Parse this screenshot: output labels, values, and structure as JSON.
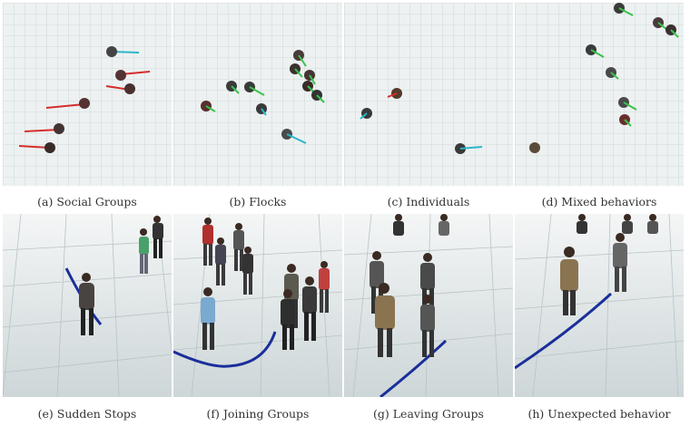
{
  "captions": {
    "a": "(a) Social Groups",
    "b": "(b) Flocks",
    "c": "(c) Individuals",
    "d": "(d) Mixed behaviors",
    "e": "(e) Sudden Stops",
    "f": "(f) Joining Groups",
    "g": "(g) Leaving Groups",
    "h": "(h) Unexpected behavior"
  },
  "colors": {
    "floor_top": "#eef2f2",
    "grid": "#c9d3d4",
    "social_arrow": "#d62d2d",
    "flock_arrow": "#39c24a",
    "individual_arrow": "#2bb6c8",
    "trajectory": "#1a2f9a"
  }
}
